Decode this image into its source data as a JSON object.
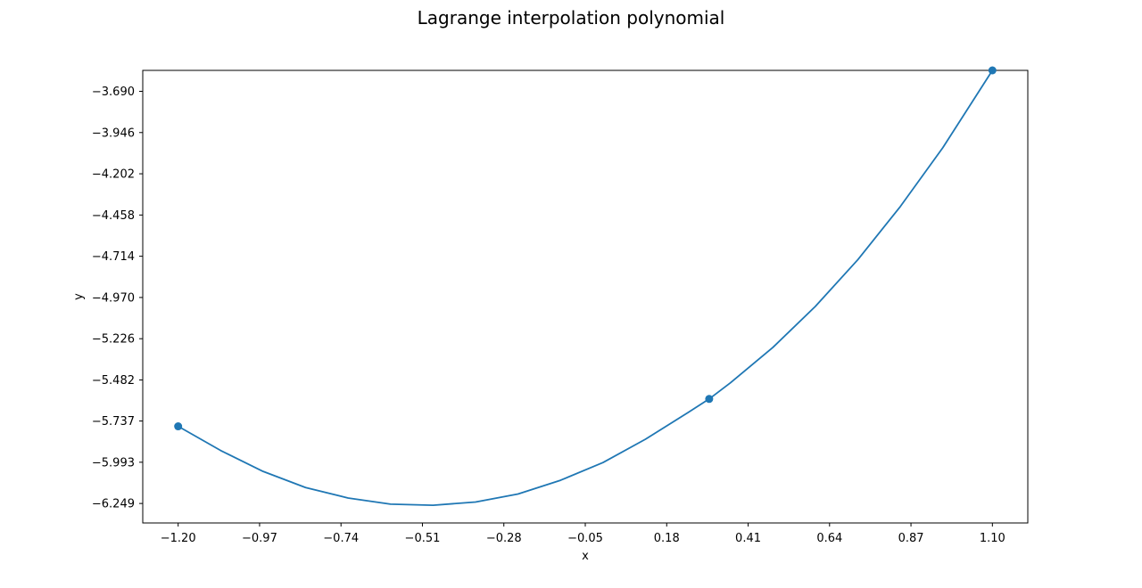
{
  "chart_data": {
    "type": "line",
    "title": "Lagrange interpolation polynomial",
    "xlabel": "x",
    "ylabel": "y",
    "xlim": [
      -1.3,
      1.2
    ],
    "ylim": [
      -6.37,
      -3.56
    ],
    "x_ticks": [
      "-1.20",
      "-0.97",
      "-0.74",
      "-0.51",
      "-0.28",
      "-0.05",
      "0.18",
      "0.41",
      "0.64",
      "0.87",
      "1.10"
    ],
    "y_ticks": [
      "-3.690",
      "-3.946",
      "-4.202",
      "-4.458",
      "-4.714",
      "-4.970",
      "-5.226",
      "-5.482",
      "-5.737",
      "-5.993",
      "-6.249"
    ],
    "grid": false,
    "color": "#1f77b4",
    "series": [
      {
        "x": [
          -1.2,
          -1.08,
          -0.96,
          -0.84,
          -0.72,
          -0.6,
          -0.48,
          -0.36,
          -0.24,
          -0.12,
          0.0,
          0.12,
          0.24,
          0.3,
          0.36,
          0.48,
          0.6,
          0.72,
          0.84,
          0.96,
          1.1
        ],
        "y": [
          -5.77,
          -5.92,
          -6.05,
          -6.15,
          -6.215,
          -6.253,
          -6.26,
          -6.24,
          -6.19,
          -6.105,
          -5.995,
          -5.85,
          -5.685,
          -5.6,
          -5.5,
          -5.28,
          -5.025,
          -4.735,
          -4.405,
          -4.04,
          -3.56
        ]
      }
    ],
    "markers": {
      "x": [
        -1.2,
        0.3,
        1.1
      ],
      "y": [
        -5.77,
        -5.6,
        -3.56
      ]
    }
  }
}
